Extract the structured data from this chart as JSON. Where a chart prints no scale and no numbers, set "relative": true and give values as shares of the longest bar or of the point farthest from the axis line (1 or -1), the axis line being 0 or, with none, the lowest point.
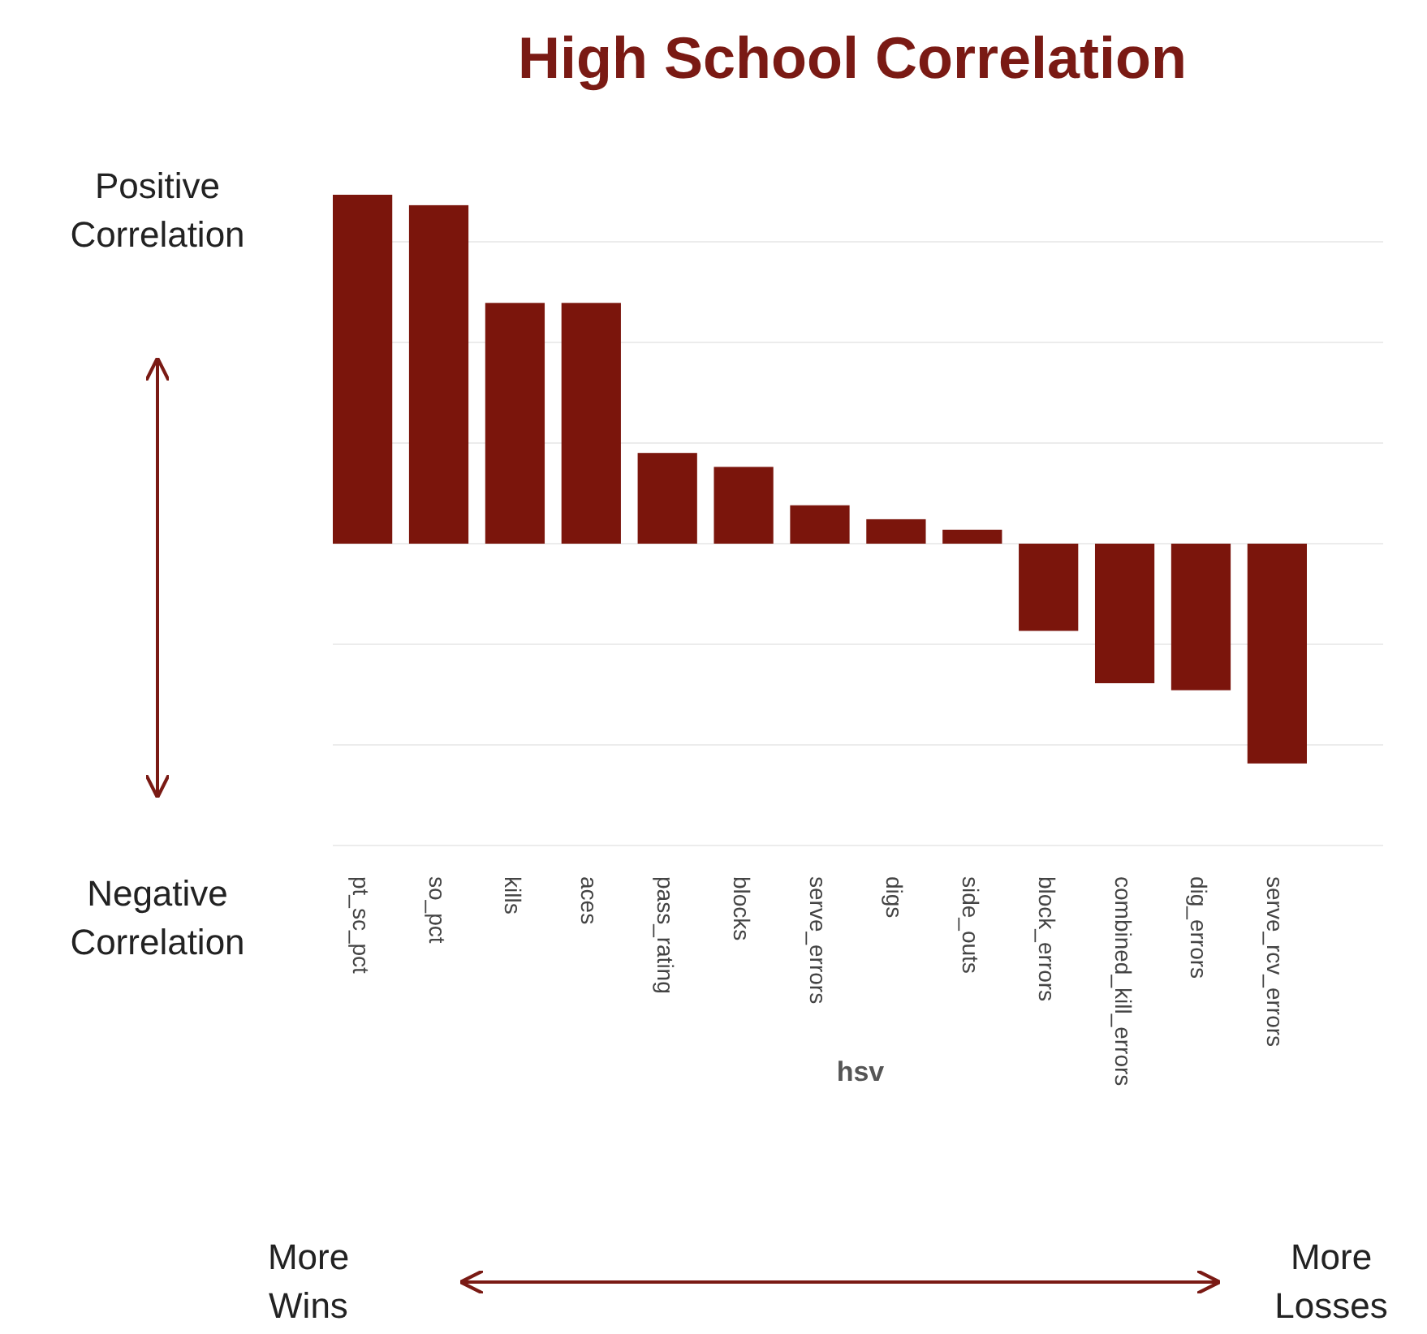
{
  "chart_data": {
    "type": "bar",
    "title": "High School Correlation",
    "xlabel": "hsv",
    "categories": [
      "pt_sc_pct",
      "so_pct",
      "kills",
      "aces",
      "pass_rating",
      "blocks",
      "serve_errors",
      "digs",
      "side_outs",
      "block_errors",
      "combined_kill_errors",
      "dig_errors",
      "serve_rcv_errors"
    ],
    "values": [
      1,
      0.97,
      0.69,
      0.69,
      0.26,
      0.22,
      0.11,
      0.07,
      0.04,
      -0.25,
      -0.4,
      -0.42,
      -0.63
    ],
    "color": "#7b150c",
    "relative": true,
    "grid": "y",
    "annotations": [
      "Positive Correlation",
      "Negative Correlation",
      "More Wins",
      "More Losses"
    ]
  }
}
